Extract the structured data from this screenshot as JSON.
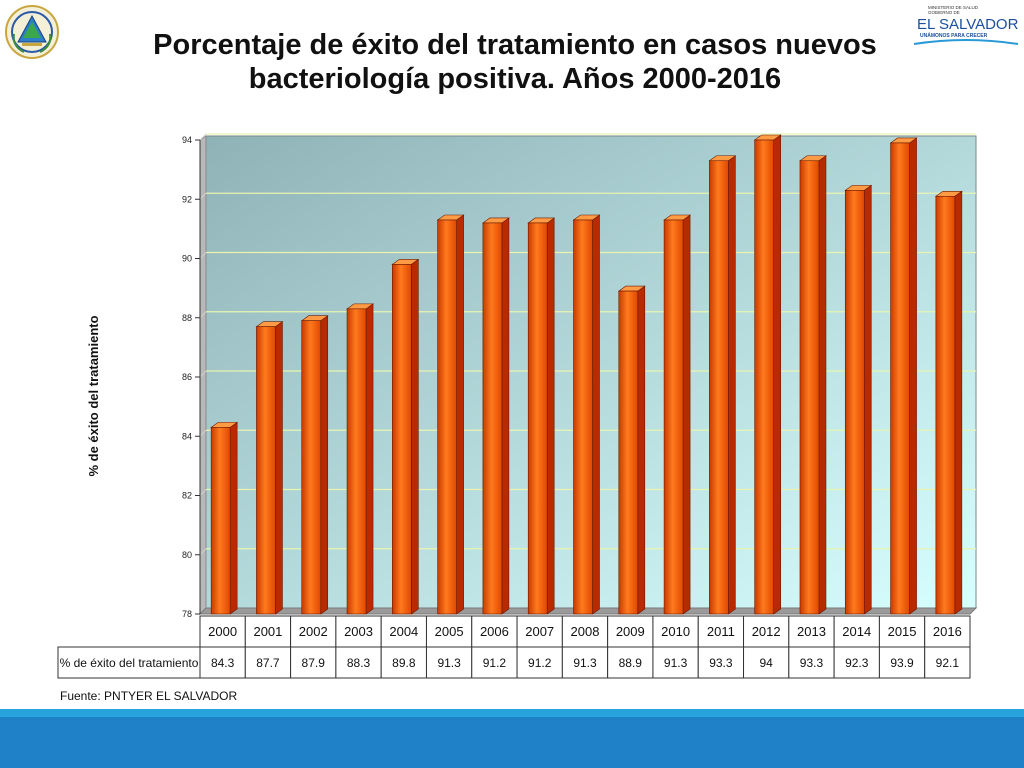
{
  "header": {
    "title_line1": "Porcentaje de éxito del tratamiento en casos nuevos",
    "title_line2": "bacteriología positiva. Años 2000-2016",
    "logo_small": "MINISTERIO DE SALUD",
    "logo_small2": "GOBIERNO DE",
    "logo_main": "EL SALVADOR",
    "logo_tagline": "UNÁMONOS PARA CRECER",
    "seal_icon": "coat-of-arms-icon"
  },
  "source": "Fuente: PNTYER EL SALVADOR",
  "colors": {
    "bar_front": "#f25a0a",
    "bar_side": "#b82a00",
    "bar_top": "#ff9a45",
    "plot_bg_start": "#8fb2b6",
    "plot_bg_end": "#d8ffff",
    "band_light": "#29a3dc",
    "band_dark": "#1f82c8"
  },
  "chart_data": {
    "type": "bar",
    "title": "Porcentaje de éxito del tratamiento en casos nuevos bacteriología positiva. Años 2000-2016",
    "ylabel": "% de éxito del tratamiento",
    "xlabel": "",
    "ylim": [
      78,
      94
    ],
    "yticks": [
      78,
      80,
      82,
      84,
      86,
      88,
      90,
      92,
      94
    ],
    "grid": true,
    "categories": [
      "2000",
      "2001",
      "2002",
      "2003",
      "2004",
      "2005",
      "2006",
      "2007",
      "2008",
      "2009",
      "2010",
      "2011",
      "2012",
      "2013",
      "2014",
      "2015",
      "2016"
    ],
    "series": [
      {
        "name": "% de éxito del tratamiento",
        "values": [
          84.3,
          87.7,
          87.9,
          88.3,
          89.8,
          91.3,
          91.2,
          91.2,
          91.3,
          88.9,
          91.3,
          93.3,
          94,
          93.3,
          92.3,
          93.9,
          92.1
        ]
      }
    ]
  }
}
